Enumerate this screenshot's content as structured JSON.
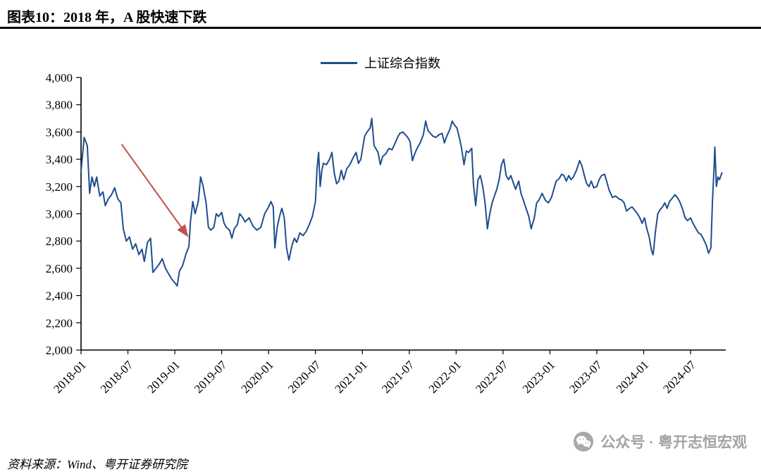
{
  "title": "图表10：2018 年，A 股快速下跌",
  "legend": {
    "label": "上证综合指数"
  },
  "source": "资料来源：Wind、粤开证券研究院",
  "watermark": "公众号 · 粤开志恒宏观",
  "colors": {
    "line": "#1f4e8f",
    "arrow": "#c0504d",
    "axis": "#000000",
    "watermark": "#a3a3a3"
  },
  "chart_data": {
    "type": "line",
    "title": "2018 年，A 股快速下跌",
    "series_name": "上证综合指数",
    "x_unit": "months since 2018-01",
    "xlim": [
      0,
      82.5
    ],
    "ylim": [
      2000,
      4000
    ],
    "y_tick_step": 200,
    "y_tick_labels": [
      "2,000",
      "2,200",
      "2,400",
      "2,600",
      "2,800",
      "3,000",
      "3,200",
      "3,400",
      "3,600",
      "3,800",
      "4,000"
    ],
    "x_ticks": [
      {
        "m": 0,
        "label": "2018-01"
      },
      {
        "m": 6,
        "label": "2018-07"
      },
      {
        "m": 12,
        "label": "2019-01"
      },
      {
        "m": 18,
        "label": "2019-07"
      },
      {
        "m": 24,
        "label": "2020-01"
      },
      {
        "m": 30,
        "label": "2020-07"
      },
      {
        "m": 36,
        "label": "2021-01"
      },
      {
        "m": 42,
        "label": "2021-07"
      },
      {
        "m": 48,
        "label": "2022-01"
      },
      {
        "m": 54,
        "label": "2022-07"
      },
      {
        "m": 60,
        "label": "2023-01"
      },
      {
        "m": 66,
        "label": "2023-07"
      },
      {
        "m": 72,
        "label": "2024-01"
      },
      {
        "m": 78,
        "label": "2024-07"
      }
    ],
    "grid": false,
    "legend_position": "top-center",
    "annotation": {
      "type": "arrow",
      "from": [
        5.2,
        3510
      ],
      "to": [
        13.6,
        2840
      ]
    },
    "series": [
      {
        "name": "上证综合指数",
        "points": [
          [
            0,
            3310
          ],
          [
            0.4,
            3560
          ],
          [
            0.8,
            3500
          ],
          [
            1.1,
            3150
          ],
          [
            1.4,
            3270
          ],
          [
            1.7,
            3200
          ],
          [
            2,
            3270
          ],
          [
            2.4,
            3130
          ],
          [
            2.8,
            3160
          ],
          [
            3.1,
            3060
          ],
          [
            3.5,
            3110
          ],
          [
            3.9,
            3140
          ],
          [
            4.3,
            3190
          ],
          [
            4.7,
            3110
          ],
          [
            5.1,
            3080
          ],
          [
            5.4,
            2890
          ],
          [
            5.8,
            2800
          ],
          [
            6.2,
            2830
          ],
          [
            6.6,
            2740
          ],
          [
            7,
            2780
          ],
          [
            7.4,
            2700
          ],
          [
            7.8,
            2740
          ],
          [
            8.1,
            2650
          ],
          [
            8.5,
            2790
          ],
          [
            8.9,
            2820
          ],
          [
            9.2,
            2570
          ],
          [
            9.6,
            2600
          ],
          [
            10,
            2630
          ],
          [
            10.4,
            2670
          ],
          [
            10.8,
            2600
          ],
          [
            11.2,
            2560
          ],
          [
            11.6,
            2520
          ],
          [
            12,
            2494
          ],
          [
            12.3,
            2470
          ],
          [
            12.6,
            2580
          ],
          [
            13,
            2620
          ],
          [
            13.4,
            2700
          ],
          [
            13.8,
            2760
          ],
          [
            14,
            2940
          ],
          [
            14.3,
            3090
          ],
          [
            14.6,
            3000
          ],
          [
            15,
            3090
          ],
          [
            15.3,
            3270
          ],
          [
            15.6,
            3210
          ],
          [
            16,
            3080
          ],
          [
            16.3,
            2900
          ],
          [
            16.6,
            2880
          ],
          [
            17,
            2900
          ],
          [
            17.3,
            3000
          ],
          [
            17.6,
            2980
          ],
          [
            18,
            3010
          ],
          [
            18.3,
            2930
          ],
          [
            18.6,
            2900
          ],
          [
            19,
            2880
          ],
          [
            19.3,
            2820
          ],
          [
            19.6,
            2890
          ],
          [
            20,
            2920
          ],
          [
            20.3,
            3000
          ],
          [
            20.6,
            2980
          ],
          [
            21,
            2940
          ],
          [
            21.5,
            2970
          ],
          [
            22,
            2910
          ],
          [
            22.5,
            2880
          ],
          [
            23,
            2900
          ],
          [
            23.5,
            3000
          ],
          [
            24,
            3050
          ],
          [
            24.3,
            3090
          ],
          [
            24.6,
            3050
          ],
          [
            24.8,
            2750
          ],
          [
            25.1,
            2900
          ],
          [
            25.4,
            2980
          ],
          [
            25.7,
            3040
          ],
          [
            26,
            2970
          ],
          [
            26.3,
            2750
          ],
          [
            26.6,
            2660
          ],
          [
            27,
            2770
          ],
          [
            27.3,
            2820
          ],
          [
            27.6,
            2790
          ],
          [
            28,
            2860
          ],
          [
            28.4,
            2840
          ],
          [
            28.8,
            2870
          ],
          [
            29.2,
            2920
          ],
          [
            29.6,
            2980
          ],
          [
            30,
            3090
          ],
          [
            30.2,
            3330
          ],
          [
            30.4,
            3450
          ],
          [
            30.6,
            3200
          ],
          [
            30.8,
            3310
          ],
          [
            31,
            3370
          ],
          [
            31.4,
            3360
          ],
          [
            31.8,
            3400
          ],
          [
            32.1,
            3450
          ],
          [
            32.4,
            3300
          ],
          [
            32.7,
            3220
          ],
          [
            33,
            3240
          ],
          [
            33.3,
            3320
          ],
          [
            33.6,
            3250
          ],
          [
            34,
            3330
          ],
          [
            34.4,
            3360
          ],
          [
            34.8,
            3410
          ],
          [
            35.2,
            3450
          ],
          [
            35.5,
            3370
          ],
          [
            35.8,
            3400
          ],
          [
            36,
            3470
          ],
          [
            36.3,
            3570
          ],
          [
            36.6,
            3600
          ],
          [
            37,
            3630
          ],
          [
            37.2,
            3700
          ],
          [
            37.5,
            3500
          ],
          [
            38,
            3450
          ],
          [
            38.3,
            3360
          ],
          [
            38.6,
            3420
          ],
          [
            39,
            3440
          ],
          [
            39.4,
            3480
          ],
          [
            39.8,
            3470
          ],
          [
            40.2,
            3520
          ],
          [
            40.5,
            3560
          ],
          [
            40.8,
            3590
          ],
          [
            41.2,
            3600
          ],
          [
            41.5,
            3580
          ],
          [
            41.8,
            3560
          ],
          [
            42.1,
            3530
          ],
          [
            42.4,
            3390
          ],
          [
            42.7,
            3440
          ],
          [
            43,
            3480
          ],
          [
            43.4,
            3520
          ],
          [
            43.8,
            3580
          ],
          [
            44.1,
            3680
          ],
          [
            44.4,
            3610
          ],
          [
            44.7,
            3590
          ],
          [
            45,
            3570
          ],
          [
            45.4,
            3560
          ],
          [
            45.8,
            3580
          ],
          [
            46.2,
            3590
          ],
          [
            46.5,
            3520
          ],
          [
            46.8,
            3570
          ],
          [
            47.2,
            3620
          ],
          [
            47.5,
            3680
          ],
          [
            47.8,
            3650
          ],
          [
            48.1,
            3630
          ],
          [
            48.4,
            3560
          ],
          [
            48.7,
            3480
          ],
          [
            49,
            3360
          ],
          [
            49.3,
            3460
          ],
          [
            49.6,
            3450
          ],
          [
            50,
            3480
          ],
          [
            50.2,
            3220
          ],
          [
            50.5,
            3060
          ],
          [
            50.8,
            3250
          ],
          [
            51.1,
            3280
          ],
          [
            51.4,
            3200
          ],
          [
            51.7,
            3080
          ],
          [
            52,
            2890
          ],
          [
            52.3,
            3000
          ],
          [
            52.6,
            3080
          ],
          [
            52.9,
            3130
          ],
          [
            53.2,
            3180
          ],
          [
            53.5,
            3250
          ],
          [
            53.8,
            3360
          ],
          [
            54.1,
            3400
          ],
          [
            54.4,
            3280
          ],
          [
            54.7,
            3250
          ],
          [
            55,
            3280
          ],
          [
            55.3,
            3230
          ],
          [
            55.6,
            3180
          ],
          [
            56,
            3240
          ],
          [
            56.3,
            3150
          ],
          [
            56.6,
            3100
          ],
          [
            57,
            3030
          ],
          [
            57.3,
            2980
          ],
          [
            57.6,
            2890
          ],
          [
            58,
            2970
          ],
          [
            58.3,
            3080
          ],
          [
            58.6,
            3100
          ],
          [
            59,
            3150
          ],
          [
            59.4,
            3100
          ],
          [
            59.8,
            3080
          ],
          [
            60.2,
            3120
          ],
          [
            60.5,
            3180
          ],
          [
            60.8,
            3240
          ],
          [
            61.2,
            3260
          ],
          [
            61.5,
            3290
          ],
          [
            61.8,
            3280
          ],
          [
            62.1,
            3240
          ],
          [
            62.4,
            3280
          ],
          [
            62.7,
            3250
          ],
          [
            63,
            3270
          ],
          [
            63.4,
            3320
          ],
          [
            63.8,
            3390
          ],
          [
            64.1,
            3350
          ],
          [
            64.4,
            3280
          ],
          [
            64.7,
            3220
          ],
          [
            65,
            3200
          ],
          [
            65.3,
            3240
          ],
          [
            65.6,
            3190
          ],
          [
            66,
            3200
          ],
          [
            66.3,
            3250
          ],
          [
            66.6,
            3280
          ],
          [
            67,
            3290
          ],
          [
            67.3,
            3230
          ],
          [
            67.6,
            3170
          ],
          [
            68,
            3120
          ],
          [
            68.4,
            3130
          ],
          [
            68.8,
            3110
          ],
          [
            69.2,
            3100
          ],
          [
            69.5,
            3080
          ],
          [
            69.8,
            3020
          ],
          [
            70.2,
            3040
          ],
          [
            70.5,
            3050
          ],
          [
            70.8,
            3030
          ],
          [
            71.2,
            3000
          ],
          [
            71.5,
            2970
          ],
          [
            71.8,
            2930
          ],
          [
            72.1,
            2970
          ],
          [
            72.4,
            2890
          ],
          [
            72.7,
            2830
          ],
          [
            73,
            2730
          ],
          [
            73.2,
            2700
          ],
          [
            73.5,
            2870
          ],
          [
            73.8,
            3000
          ],
          [
            74.1,
            3030
          ],
          [
            74.4,
            3050
          ],
          [
            74.7,
            3080
          ],
          [
            75,
            3040
          ],
          [
            75.3,
            3090
          ],
          [
            75.6,
            3110
          ],
          [
            76,
            3140
          ],
          [
            76.3,
            3120
          ],
          [
            76.6,
            3090
          ],
          [
            77,
            3030
          ],
          [
            77.3,
            2970
          ],
          [
            77.6,
            2950
          ],
          [
            78,
            2970
          ],
          [
            78.3,
            2930
          ],
          [
            78.6,
            2900
          ],
          [
            79,
            2860
          ],
          [
            79.3,
            2850
          ],
          [
            79.6,
            2820
          ],
          [
            80,
            2770
          ],
          [
            80.3,
            2710
          ],
          [
            80.6,
            2750
          ],
          [
            80.8,
            3090
          ],
          [
            81,
            3340
          ],
          [
            81.1,
            3490
          ],
          [
            81.3,
            3200
          ],
          [
            81.5,
            3270
          ],
          [
            81.7,
            3250
          ],
          [
            82,
            3300
          ]
        ]
      }
    ]
  }
}
